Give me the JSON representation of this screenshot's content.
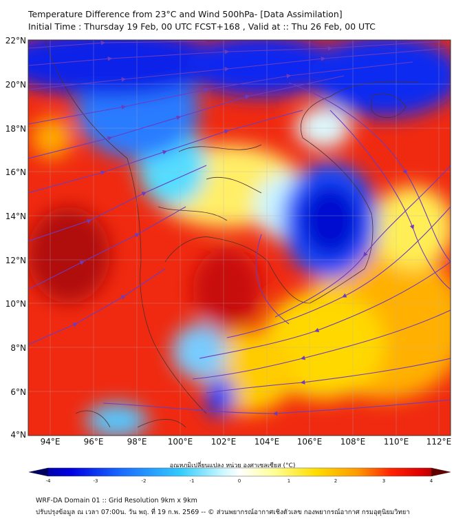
{
  "title": {
    "line1": "Temperature Difference from 23°C and Wind 500hPa- [Data Assimilation]",
    "line2": "Initial Time : Thursday 19 Feb, 00 UTC FCST+168 , Valid at ::  Thu 26 Feb, 00 UTC"
  },
  "map": {
    "lat_labels": [
      "22°N",
      "20°N",
      "18°N",
      "16°N",
      "14°N",
      "12°N",
      "10°N",
      "8°N",
      "6°N",
      "4°N"
    ],
    "lon_labels": [
      "94°E",
      "96°E",
      "98°E",
      "100°E",
      "102°E",
      "104°E",
      "106°E",
      "108°E",
      "110°E",
      "112°E"
    ],
    "lat_range": [
      4,
      22
    ],
    "lon_range": [
      93,
      112.5
    ],
    "streamline_color": "#6b3cc0"
  },
  "colorbar": {
    "title": "อุณหภูมิเปลี่ยนแปลง หน่วย องศาเซลเซียส (°C)",
    "ticks": [
      "-4",
      "-3",
      "-2",
      "-1",
      "0",
      "1",
      "2",
      "3",
      "4"
    ],
    "range": [
      -4,
      4
    ],
    "colors": [
      "#000080",
      "#0000e0",
      "#1a6cff",
      "#33ccff",
      "#ccf8ff",
      "#ffffff",
      "#ffff99",
      "#ffdd00",
      "#ff9900",
      "#ff2200",
      "#dd0000",
      "#800000"
    ]
  },
  "footer": {
    "line1": "WRF-DA Domain 01 :: Grid Resolution 9km x 9km",
    "line2": "ปรับปรุงข้อมูล ณ เวลา 07:00น. วัน พฤ. ที่ 19 ก.พ. 2569 -- © ส่วนพยากรณ์อากาศเชิงตัวเลข กองพยากรณ์อากาศ กรมอุตุนิยมวิทยา"
  }
}
